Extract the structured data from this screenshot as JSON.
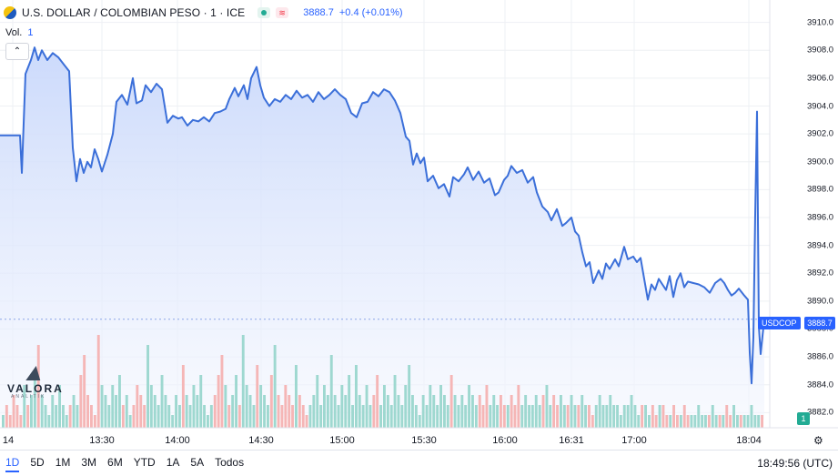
{
  "header": {
    "symbol_title": "U.S. DOLLAR / COLOMBIAN PESO · 1 · ICE",
    "last_price": "3888.7",
    "change": "+0.4 (+0.01%)",
    "volume_label": "Vol.",
    "volume_value": "1"
  },
  "logo": {
    "name": "VALORA",
    "sub": "ANALITIK"
  },
  "price_tag": {
    "symbol": "USDCOP",
    "price": "3888.7"
  },
  "volume_tag": "1",
  "timeframes": [
    "1D",
    "5D",
    "1M",
    "3M",
    "6M",
    "YTD",
    "1A",
    "5A",
    "Todos"
  ],
  "active_timeframe": "1D",
  "clock": "18:49:56 (UTC)",
  "colors": {
    "line": "#3b6fd9",
    "fill": "#e6edfc",
    "up": "#26a69a",
    "down": "#ef5350",
    "accent": "#2962ff"
  },
  "chart_data": {
    "type": "area",
    "y_ticks": [
      "3910.0",
      "3908.0",
      "3906.0",
      "3904.0",
      "3902.0",
      "3900.0",
      "3898.0",
      "3896.0",
      "3894.0",
      "3892.0",
      "3890.0",
      "3888.0",
      "3886.0",
      "3884.0",
      "3882.0"
    ],
    "ylim": [
      3881.5,
      3910.5
    ],
    "x_ticks": [
      "14",
      "13:30",
      "14:00",
      "14:30",
      "15:00",
      "15:30",
      "16:00",
      "16:31",
      "17:00",
      "18:04"
    ],
    "grid": true,
    "last_price": 3888.7,
    "price_series": [
      [
        0,
        3901.9
      ],
      [
        22,
        3901.9
      ],
      [
        24,
        3899.2
      ],
      [
        28,
        3906.3
      ],
      [
        34,
        3907.3
      ],
      [
        38,
        3908.2
      ],
      [
        42,
        3907.3
      ],
      [
        46,
        3908.0
      ],
      [
        52,
        3907.3
      ],
      [
        58,
        3907.8
      ],
      [
        64,
        3907.5
      ],
      [
        70,
        3907.0
      ],
      [
        76,
        3906.5
      ],
      [
        80,
        3901.0
      ],
      [
        84,
        3898.6
      ],
      [
        88,
        3900.2
      ],
      [
        92,
        3899.2
      ],
      [
        96,
        3900.0
      ],
      [
        100,
        3899.6
      ],
      [
        104,
        3900.9
      ],
      [
        108,
        3900.2
      ],
      [
        112,
        3899.3
      ],
      [
        118,
        3900.5
      ],
      [
        124,
        3902.0
      ],
      [
        128,
        3904.3
      ],
      [
        134,
        3904.8
      ],
      [
        140,
        3904.1
      ],
      [
        146,
        3906.0
      ],
      [
        150,
        3904.2
      ],
      [
        156,
        3904.4
      ],
      [
        160,
        3905.5
      ],
      [
        166,
        3905.0
      ],
      [
        172,
        3905.6
      ],
      [
        178,
        3905.2
      ],
      [
        184,
        3902.8
      ],
      [
        190,
        3903.3
      ],
      [
        196,
        3903.1
      ],
      [
        200,
        3903.2
      ],
      [
        206,
        3902.6
      ],
      [
        212,
        3903.0
      ],
      [
        218,
        3902.9
      ],
      [
        224,
        3903.2
      ],
      [
        230,
        3902.9
      ],
      [
        236,
        3903.5
      ],
      [
        242,
        3903.6
      ],
      [
        248,
        3903.8
      ],
      [
        252,
        3904.5
      ],
      [
        258,
        3905.3
      ],
      [
        262,
        3904.7
      ],
      [
        268,
        3905.5
      ],
      [
        272,
        3904.5
      ],
      [
        276,
        3906.0
      ],
      [
        282,
        3906.8
      ],
      [
        286,
        3905.5
      ],
      [
        290,
        3904.6
      ],
      [
        296,
        3904.0
      ],
      [
        302,
        3904.5
      ],
      [
        308,
        3904.3
      ],
      [
        314,
        3904.8
      ],
      [
        320,
        3904.5
      ],
      [
        326,
        3905.1
      ],
      [
        332,
        3904.6
      ],
      [
        338,
        3904.8
      ],
      [
        344,
        3904.3
      ],
      [
        350,
        3905.0
      ],
      [
        356,
        3904.5
      ],
      [
        362,
        3904.8
      ],
      [
        368,
        3905.2
      ],
      [
        374,
        3904.8
      ],
      [
        380,
        3904.5
      ],
      [
        386,
        3903.5
      ],
      [
        392,
        3903.2
      ],
      [
        398,
        3904.2
      ],
      [
        404,
        3904.3
      ],
      [
        410,
        3905.0
      ],
      [
        416,
        3904.7
      ],
      [
        422,
        3905.2
      ],
      [
        428,
        3905.0
      ],
      [
        434,
        3904.4
      ],
      [
        440,
        3903.5
      ],
      [
        446,
        3901.8
      ],
      [
        450,
        3901.5
      ],
      [
        454,
        3899.8
      ],
      [
        458,
        3900.6
      ],
      [
        462,
        3899.9
      ],
      [
        466,
        3900.3
      ],
      [
        470,
        3898.6
      ],
      [
        476,
        3899.0
      ],
      [
        482,
        3898.1
      ],
      [
        488,
        3898.4
      ],
      [
        494,
        3897.5
      ],
      [
        498,
        3898.9
      ],
      [
        504,
        3898.6
      ],
      [
        510,
        3899.1
      ],
      [
        514,
        3899.6
      ],
      [
        520,
        3898.7
      ],
      [
        526,
        3899.3
      ],
      [
        532,
        3898.5
      ],
      [
        538,
        3898.8
      ],
      [
        544,
        3897.6
      ],
      [
        548,
        3897.8
      ],
      [
        554,
        3898.7
      ],
      [
        558,
        3899.0
      ],
      [
        562,
        3899.7
      ],
      [
        568,
        3899.2
      ],
      [
        574,
        3899.4
      ],
      [
        580,
        3898.5
      ],
      [
        586,
        3898.9
      ],
      [
        590,
        3897.8
      ],
      [
        596,
        3896.8
      ],
      [
        602,
        3896.4
      ],
      [
        606,
        3895.8
      ],
      [
        612,
        3896.6
      ],
      [
        618,
        3895.4
      ],
      [
        622,
        3895.6
      ],
      [
        628,
        3896.0
      ],
      [
        632,
        3895.0
      ],
      [
        636,
        3894.7
      ],
      [
        640,
        3893.5
      ],
      [
        644,
        3892.5
      ],
      [
        648,
        3892.8
      ],
      [
        652,
        3891.3
      ],
      [
        658,
        3892.2
      ],
      [
        662,
        3891.6
      ],
      [
        666,
        3892.7
      ],
      [
        670,
        3892.3
      ],
      [
        676,
        3893.0
      ],
      [
        680,
        3892.5
      ],
      [
        686,
        3893.9
      ],
      [
        690,
        3893.0
      ],
      [
        696,
        3893.2
      ],
      [
        700,
        3892.8
      ],
      [
        704,
        3893.1
      ],
      [
        708,
        3891.6
      ],
      [
        712,
        3890.1
      ],
      [
        716,
        3891.2
      ],
      [
        720,
        3890.8
      ],
      [
        724,
        3891.6
      ],
      [
        728,
        3891.2
      ],
      [
        732,
        3890.8
      ],
      [
        736,
        3891.8
      ],
      [
        740,
        3890.3
      ],
      [
        744,
        3891.5
      ],
      [
        748,
        3892.0
      ],
      [
        752,
        3891.0
      ],
      [
        756,
        3891.4
      ],
      [
        762,
        3891.3
      ],
      [
        768,
        3891.2
      ],
      [
        774,
        3891.0
      ],
      [
        780,
        3890.6
      ],
      [
        786,
        3891.3
      ],
      [
        792,
        3891.6
      ],
      [
        796,
        3891.3
      ],
      [
        800,
        3890.8
      ],
      [
        804,
        3890.4
      ],
      [
        808,
        3890.6
      ],
      [
        812,
        3890.9
      ],
      [
        818,
        3890.4
      ],
      [
        822,
        3890.1
      ],
      [
        824,
        3886.3
      ],
      [
        826,
        3884.1
      ],
      [
        828,
        3887.4
      ],
      [
        830,
        3896.2
      ],
      [
        832,
        3903.6
      ],
      [
        834,
        3888.2
      ],
      [
        836,
        3886.2
      ],
      [
        838,
        3887.5
      ],
      [
        840,
        3888.7
      ]
    ],
    "volume_heights": [
      1,
      2,
      1,
      3,
      2,
      1,
      4,
      2,
      3,
      5,
      8,
      3,
      2,
      1,
      3,
      2,
      4,
      2,
      1,
      2,
      3,
      2,
      5,
      7,
      3,
      2,
      1,
      9,
      4,
      3,
      2,
      4,
      3,
      5,
      2,
      3,
      1,
      2,
      4,
      3,
      2,
      8,
      4,
      3,
      2,
      5,
      3,
      2,
      1,
      3,
      2,
      6,
      3,
      2,
      4,
      3,
      5,
      2,
      1,
      2,
      3,
      5,
      7,
      4,
      2,
      3,
      5,
      2,
      9,
      4,
      3,
      2,
      6,
      4,
      3,
      2,
      5,
      8,
      3,
      2,
      4,
      3,
      2,
      6,
      3,
      2,
      1,
      2,
      3,
      5,
      2,
      4,
      3,
      7,
      3,
      2,
      4,
      3,
      5,
      2,
      6,
      3,
      2,
      4,
      2,
      3,
      5,
      2,
      4,
      3,
      2,
      5,
      3,
      2,
      4,
      6,
      3,
      2,
      1,
      3,
      2,
      4,
      3,
      2,
      4,
      3,
      2,
      5,
      3,
      2,
      3,
      2,
      4,
      3,
      2,
      3,
      2,
      4,
      2,
      3,
      2,
      3,
      2,
      2,
      3,
      2,
      4,
      2,
      3,
      2,
      2,
      3,
      2,
      3,
      4,
      2,
      3,
      2,
      3,
      2,
      2,
      3,
      2,
      2,
      3,
      2,
      2,
      1,
      2,
      3,
      2,
      2,
      3,
      2,
      2,
      1,
      2,
      2,
      3,
      2,
      1,
      2,
      2,
      1,
      2,
      1,
      2,
      2,
      1,
      1,
      2,
      1,
      1,
      2,
      1,
      1,
      1,
      2,
      1,
      1,
      1,
      2,
      1,
      1,
      1,
      2,
      1,
      2,
      1,
      1,
      1,
      1,
      2,
      1,
      1,
      1
    ],
    "volume_colors": "ud"
  }
}
